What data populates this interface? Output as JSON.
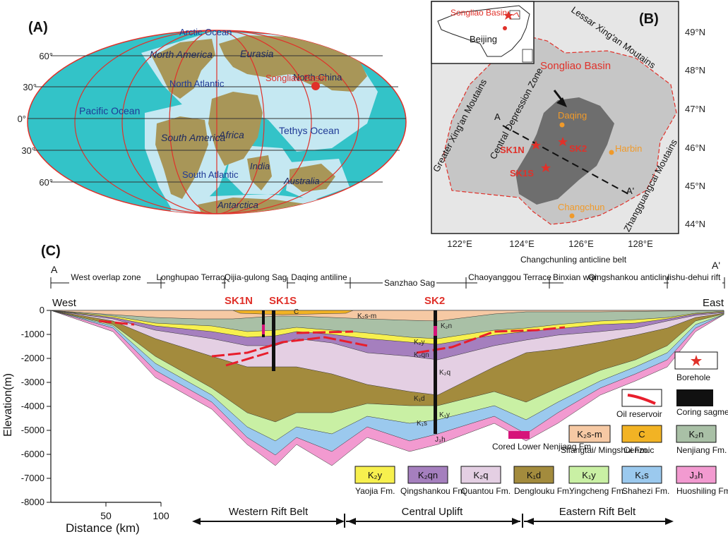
{
  "colors": {
    "ocean": "#33c3c8",
    "shelf": "#c5e8f2",
    "land": "#a89658",
    "grid": "#e0312a",
    "blue_text": "#1f3a96",
    "red_text": "#e0312a",
    "basin_gray": "#c6c6c6",
    "depression_gray": "#6e6e6e",
    "city_orange": "#f09a2a",
    "K2sm": "#f6c9a4",
    "Cenozoic": "#f2b324",
    "K2n": "#a9c0a6",
    "K2y": "#f7f04e",
    "K2qn": "#a57fbe",
    "K2q": "#e4cfe3",
    "K1d": "#a38b3d",
    "K1y": "#c9f0a4",
    "K1s": "#9bc9ee",
    "J3h": "#f29ad0",
    "oil": "#e81e2c",
    "cored": "#d6147a"
  },
  "panelA": {
    "label": "(A)",
    "lat_labels": [
      "60°",
      "30°",
      "0°",
      "30°",
      "60°"
    ],
    "labels": {
      "arctic": "Arctic Ocean",
      "north_america": "North America",
      "eurasia": "Eurasia",
      "north_china": "North China",
      "songliao": "Songliao Basin",
      "north_atlantic": "North Atlantic",
      "pacific": "Pacific Ocean",
      "africa": "Africa",
      "tethys": "Tethys Ocean",
      "south_america": "South America",
      "india": "India",
      "south_atlantic": "South Atlantic",
      "australia": "Australia",
      "antarctica": "Antarctica"
    }
  },
  "panelB": {
    "label": "(B)",
    "inset": {
      "songliao": "Songliao Basin",
      "beijing": "Beijing"
    },
    "lat_labels": [
      "49°N",
      "48°N",
      "47°N",
      "46°N",
      "45°N",
      "44°N"
    ],
    "lon_labels": [
      "122°E",
      "124°E",
      "126°E",
      "128°E"
    ],
    "labels": {
      "lesser": "Lessar Xing'an Moutains",
      "basin": "Songliao Basin",
      "greater": "Greater Xing'an Moutains",
      "central": "Central Depression Zone",
      "zhang": "Zhangguangcai Moutains",
      "daqing": "Daqing",
      "harbin": "Harbin",
      "changchun": "Changchun",
      "sk1n": "SK1N",
      "sk2": "SK2",
      "sk1s": "SK1S",
      "a": "A",
      "a_prime": "A'"
    }
  },
  "panelC": {
    "label": "(C)",
    "a_left": "A",
    "a_right": "A'",
    "west": "West",
    "east": "East",
    "zones": [
      "West overlap zone",
      "Longhupao Terrace",
      "Qijia-gulong Sag",
      "Daqing antiline",
      "Sanzhao Sag",
      "Chaoyanggou Terrace",
      "Changchunling anticline belt",
      "Binxian wangfu Sag",
      "Qingshankou anticline",
      "lishu-dehui rift"
    ],
    "wells": [
      "SK1N",
      "SK1S",
      "SK2"
    ],
    "inline": [
      "K₂s-m",
      "C",
      "K₂n",
      "K₂y",
      "K₂qn",
      "K₂q",
      "K₁d",
      "K₁y",
      "K₁s",
      "J₃h"
    ],
    "y_axis_label": "Elevation(m)",
    "y_ticks": [
      "0",
      "-1000",
      "-2000",
      "-3000",
      "-4000",
      "-5000",
      "-6000",
      "-7000",
      "-8000"
    ],
    "x_axis_label": "Distance (km)",
    "x_ticks": [
      "50",
      "100"
    ],
    "belts": [
      "Western Rift Belt",
      "Central Uplift",
      "Eastern Rift Belt"
    ],
    "legend": {
      "borehole": "Borehole",
      "oil": "Oil reservoir",
      "coring": "Coring sagment",
      "cored": "Cored Lower Nenjiang Fm.",
      "K2sm": {
        "sym": "K₂s-m",
        "name": "Sifangtai/ Mingshui Fm."
      },
      "C": {
        "sym": "C",
        "name": "Cenzoic"
      },
      "K2n": {
        "sym": "K₂n",
        "name": "Nenjiang Fm."
      },
      "K2y": {
        "sym": "K₂y",
        "name": "Yaojia Fm."
      },
      "K2qn": {
        "sym": "K₂qn",
        "name": "Qingshankou Fm."
      },
      "K2q": {
        "sym": "K₂q",
        "name": "Quantou Fm."
      },
      "K1d": {
        "sym": "K₁d",
        "name": "Denglouku Fm."
      },
      "K1y": {
        "sym": "K₁y",
        "name": "Yingcheng Fm."
      },
      "K1s": {
        "sym": "K₁s",
        "name": "Shahezi Fm."
      },
      "J3h": {
        "sym": "J₃h",
        "name": "Huoshiling Fm."
      }
    }
  }
}
